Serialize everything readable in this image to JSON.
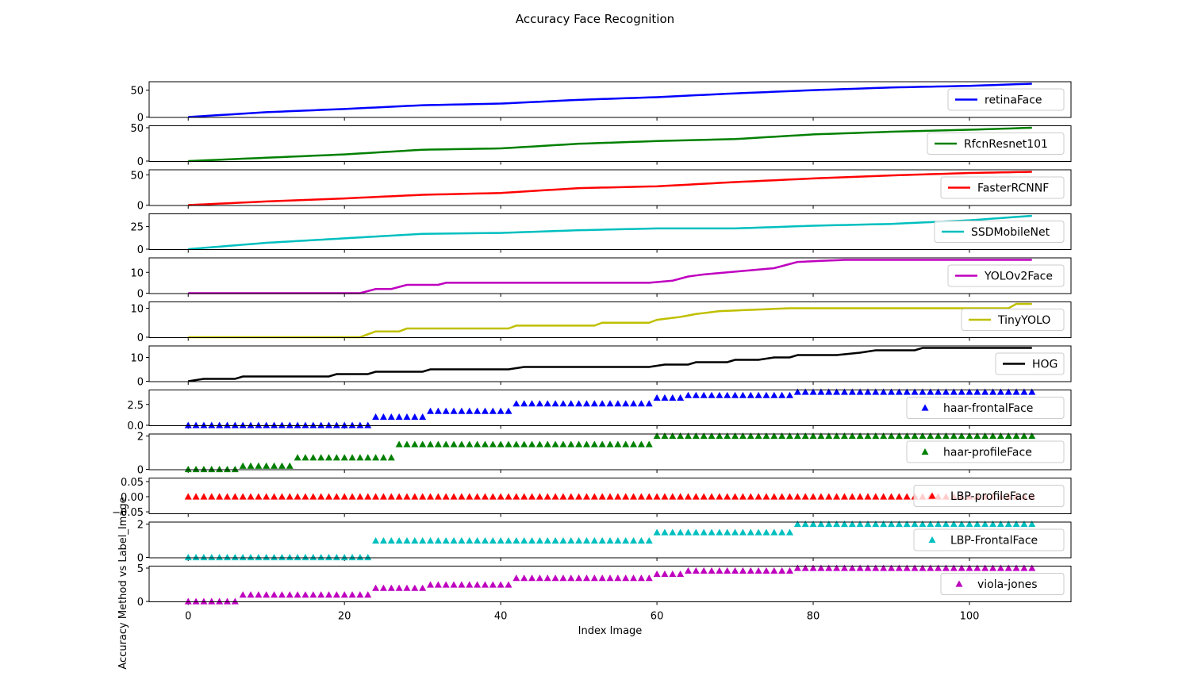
{
  "title": "Accuracy Face Recognition",
  "xlabel": "Index Image",
  "ylabel": "Accuracy Method vs Label_Image",
  "chart_data": {
    "type": "line",
    "title": "Accuracy Face Recognition",
    "xlabel": "Index Image",
    "ylabel": "Accuracy Method vs Label_Image",
    "x_range": [
      0,
      108
    ],
    "xlim": [
      -5,
      113
    ],
    "xticks": [
      0,
      20,
      40,
      60,
      80,
      100
    ],
    "grid": false,
    "legend_position": "right",
    "series": [
      {
        "name": "retinaFace",
        "style": "line",
        "color": "#0000ff",
        "ylim": [
          0,
          62
        ],
        "yticks": [
          0,
          50
        ],
        "yticklabels": [
          "0",
          "50"
        ],
        "points": [
          [
            0,
            0
          ],
          [
            10,
            9
          ],
          [
            20,
            15
          ],
          [
            30,
            22
          ],
          [
            40,
            25
          ],
          [
            50,
            32
          ],
          [
            60,
            37
          ],
          [
            70,
            44
          ],
          [
            80,
            50
          ],
          [
            90,
            55
          ],
          [
            100,
            58
          ],
          [
            108,
            62
          ]
        ]
      },
      {
        "name": "RfcnResnet101",
        "style": "line",
        "color": "#008000",
        "ylim": [
          0,
          50
        ],
        "yticks": [
          0,
          50
        ],
        "yticklabels": [
          "0",
          "50"
        ],
        "points": [
          [
            0,
            0
          ],
          [
            10,
            5
          ],
          [
            20,
            10
          ],
          [
            30,
            17
          ],
          [
            40,
            19
          ],
          [
            50,
            26
          ],
          [
            60,
            30
          ],
          [
            70,
            33
          ],
          [
            80,
            40
          ],
          [
            90,
            44
          ],
          [
            100,
            47
          ],
          [
            108,
            50
          ]
        ]
      },
      {
        "name": "FasterRCNNF",
        "style": "line",
        "color": "#ff0000",
        "ylim": [
          0,
          55
        ],
        "yticks": [
          0,
          50
        ],
        "yticklabels": [
          "0",
          "50"
        ],
        "points": [
          [
            0,
            0
          ],
          [
            10,
            6
          ],
          [
            20,
            11
          ],
          [
            30,
            17
          ],
          [
            40,
            20
          ],
          [
            50,
            28
          ],
          [
            60,
            31
          ],
          [
            70,
            38
          ],
          [
            80,
            44
          ],
          [
            90,
            49
          ],
          [
            100,
            53
          ],
          [
            108,
            55
          ]
        ]
      },
      {
        "name": "SSDMobileNet",
        "style": "line",
        "color": "#00bfbf",
        "ylim": [
          0,
          37
        ],
        "yticks": [
          0,
          25
        ],
        "yticklabels": [
          "0",
          "25"
        ],
        "points": [
          [
            0,
            0
          ],
          [
            10,
            7
          ],
          [
            20,
            12
          ],
          [
            30,
            17
          ],
          [
            40,
            18
          ],
          [
            50,
            21
          ],
          [
            60,
            23
          ],
          [
            70,
            23
          ],
          [
            80,
            26
          ],
          [
            90,
            28
          ],
          [
            100,
            32
          ],
          [
            108,
            37
          ]
        ]
      },
      {
        "name": "YOLOv2Face",
        "style": "line",
        "color": "#bf00bf",
        "ylim": [
          0,
          16
        ],
        "yticks": [
          0,
          10
        ],
        "yticklabels": [
          "0",
          "10"
        ],
        "points": [
          [
            0,
            0
          ],
          [
            22,
            0
          ],
          [
            24,
            2
          ],
          [
            26,
            2
          ],
          [
            28,
            4
          ],
          [
            32,
            4
          ],
          [
            33,
            5
          ],
          [
            59,
            5
          ],
          [
            62,
            6
          ],
          [
            64,
            8
          ],
          [
            66,
            9
          ],
          [
            69,
            10
          ],
          [
            72,
            11
          ],
          [
            75,
            12
          ],
          [
            78,
            15
          ],
          [
            84,
            16
          ],
          [
            108,
            16
          ]
        ]
      },
      {
        "name": "TinyYOLO",
        "style": "line",
        "color": "#bfbf00",
        "ylim": [
          0,
          11.5
        ],
        "yticks": [
          0,
          10
        ],
        "yticklabels": [
          "0",
          "10"
        ],
        "points": [
          [
            0,
            0
          ],
          [
            22,
            0
          ],
          [
            24,
            2
          ],
          [
            27,
            2
          ],
          [
            28,
            3
          ],
          [
            41,
            3
          ],
          [
            42,
            4
          ],
          [
            52,
            4
          ],
          [
            53,
            5
          ],
          [
            59,
            5
          ],
          [
            60,
            6
          ],
          [
            63,
            7
          ],
          [
            65,
            8
          ],
          [
            68,
            9
          ],
          [
            77,
            10
          ],
          [
            105,
            10
          ],
          [
            106,
            11.5
          ],
          [
            108,
            11.5
          ]
        ]
      },
      {
        "name": "HOG",
        "style": "line",
        "color": "#000000",
        "ylim": [
          0,
          14
        ],
        "yticks": [
          0,
          10
        ],
        "yticklabels": [
          "0",
          "10"
        ],
        "points": [
          [
            0,
            0
          ],
          [
            2,
            1
          ],
          [
            6,
            1
          ],
          [
            7,
            2
          ],
          [
            18,
            2
          ],
          [
            19,
            3
          ],
          [
            23,
            3
          ],
          [
            24,
            4
          ],
          [
            30,
            4
          ],
          [
            31,
            5
          ],
          [
            41,
            5
          ],
          [
            43,
            6
          ],
          [
            59,
            6
          ],
          [
            61,
            7
          ],
          [
            64,
            7
          ],
          [
            65,
            8
          ],
          [
            69,
            8
          ],
          [
            70,
            9
          ],
          [
            73,
            9
          ],
          [
            75,
            10
          ],
          [
            77,
            10
          ],
          [
            78,
            11
          ],
          [
            83,
            11
          ],
          [
            86,
            12
          ],
          [
            88,
            13
          ],
          [
            93,
            13
          ],
          [
            94,
            14
          ],
          [
            108,
            14
          ]
        ]
      },
      {
        "name": "haar-frontalFace",
        "style": "marker",
        "color": "#0000ff",
        "ylim": [
          0,
          4
        ],
        "yticks": [
          0,
          2.5
        ],
        "yticklabels": [
          "0.0",
          "2.5"
        ],
        "steps": [
          [
            0,
            0
          ],
          [
            24,
            1
          ],
          [
            31,
            1.7
          ],
          [
            42,
            2.6
          ],
          [
            60,
            3.3
          ],
          [
            64,
            3.6
          ],
          [
            78,
            4
          ]
        ]
      },
      {
        "name": "haar-profileFace",
        "style": "marker",
        "color": "#008000",
        "ylim": [
          0,
          2
        ],
        "yticks": [
          0,
          2
        ],
        "yticklabels": [
          "0",
          "2"
        ],
        "steps": [
          [
            0,
            0
          ],
          [
            7,
            0.2
          ],
          [
            14,
            0.7
          ],
          [
            27,
            1.5
          ],
          [
            60,
            2
          ]
        ]
      },
      {
        "name": "LBP-profileFace",
        "style": "marker",
        "color": "#ff0000",
        "ylim": [
          -0.055,
          0.055
        ],
        "yticks": [
          -0.05,
          0.0,
          0.05
        ],
        "yticklabels": [
          "−0.05",
          "0.00",
          "0.05"
        ],
        "steps": [
          [
            0,
            0
          ]
        ]
      },
      {
        "name": "LBP-FrontalFace",
        "style": "marker",
        "color": "#00bfbf",
        "ylim": [
          0,
          2
        ],
        "yticks": [
          0,
          2
        ],
        "yticklabels": [
          "0",
          "2"
        ],
        "steps": [
          [
            0,
            0
          ],
          [
            24,
            1
          ],
          [
            60,
            1.5
          ],
          [
            78,
            2
          ]
        ]
      },
      {
        "name": "viola-jones",
        "style": "marker",
        "color": "#bf00bf",
        "ylim": [
          0,
          5
        ],
        "yticks": [
          0,
          5
        ],
        "yticklabels": [
          "0",
          "5"
        ],
        "steps": [
          [
            0,
            0
          ],
          [
            7,
            1
          ],
          [
            24,
            2
          ],
          [
            31,
            2.5
          ],
          [
            42,
            3.5
          ],
          [
            60,
            4.1
          ],
          [
            64,
            4.6
          ],
          [
            78,
            5
          ]
        ]
      }
    ]
  }
}
